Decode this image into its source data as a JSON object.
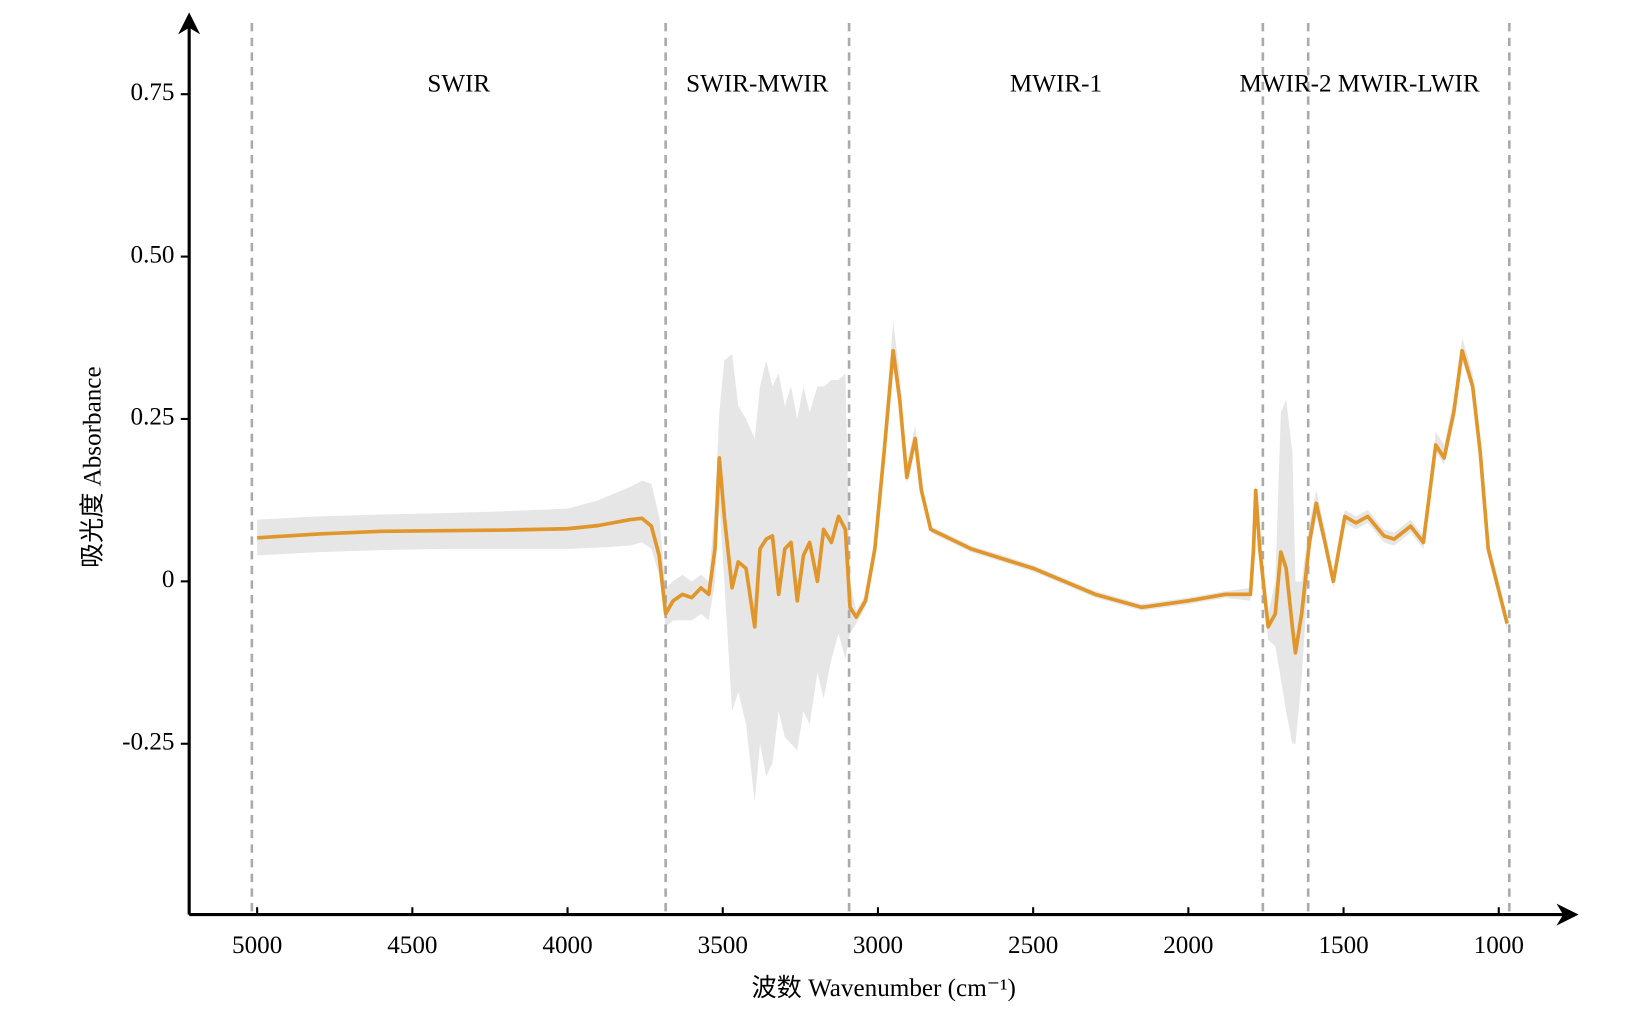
{
  "chart_data": {
    "type": "line",
    "x_label": "波数 Wavenumber (cm⁻¹)",
    "y_label": "吸光度 Absorbance",
    "color": "#e0962a",
    "band_color": "#e6e6e6",
    "xlim": [
      5219,
      764
    ],
    "ylim": [
      -0.513,
      0.866
    ],
    "xticks": [
      5000,
      4500,
      4000,
      3500,
      3000,
      2500,
      2000,
      1500,
      1000
    ],
    "yticks": [
      0.75,
      {
        "value": 0.5,
        "label": "0.50"
      },
      0.25,
      0,
      -0.25
    ],
    "regions": [
      "SWIR",
      "SWIR-MWIR",
      "MWIR-1",
      "MWIR-2",
      "MWIR-LWIR"
    ],
    "boundaries": [
      5017,
      3684,
      3093,
      1760,
      1614,
      966
    ],
    "x": [
      5000,
      4800,
      4600,
      4400,
      4200,
      4000,
      3900,
      3800,
      3760,
      3730,
      3705,
      3684,
      3660,
      3630,
      3600,
      3570,
      3545,
      3525,
      3511,
      3495,
      3470,
      3450,
      3425,
      3397,
      3380,
      3360,
      3340,
      3320,
      3300,
      3280,
      3260,
      3240,
      3220,
      3195,
      3175,
      3150,
      3127,
      3105,
      3090,
      3070,
      3040,
      3010,
      2980,
      2951,
      2930,
      2907,
      2880,
      2860,
      2830,
      2700,
      2500,
      2300,
      2150,
      2000,
      1880,
      1800,
      1790,
      1783,
      1770,
      1743,
      1720,
      1702,
      1685,
      1665,
      1655,
      1635,
      1610,
      1588,
      1560,
      1533,
      1496,
      1460,
      1422,
      1370,
      1337,
      1284,
      1243,
      1203,
      1176,
      1145,
      1118,
      1084,
      1060,
      1034,
      973
    ],
    "values": [
      0.067,
      0.073,
      0.077,
      0.078,
      0.079,
      0.081,
      0.086,
      0.095,
      0.097,
      0.085,
      0.04,
      -0.05,
      -0.03,
      -0.02,
      -0.025,
      -0.01,
      -0.02,
      0.05,
      0.19,
      0.1,
      -0.01,
      0.03,
      0.02,
      -0.07,
      0.05,
      0.065,
      0.07,
      -0.02,
      0.05,
      0.06,
      -0.03,
      0.04,
      0.06,
      0,
      0.08,
      0.06,
      0.1,
      0.08,
      -0.04,
      -0.055,
      -0.03,
      0.05,
      0.2,
      0.355,
      0.28,
      0.16,
      0.22,
      0.14,
      0.08,
      0.05,
      0.02,
      -0.02,
      -0.04,
      -0.03,
      -0.02,
      -0.02,
      0.05,
      0.14,
      0.05,
      -0.07,
      -0.05,
      0.045,
      0.02,
      -0.07,
      -0.11,
      -0.05,
      0.06,
      0.12,
      0.06,
      0,
      0.1,
      0.09,
      0.1,
      0.07,
      0.065,
      0.085,
      0.06,
      0.21,
      0.19,
      0.26,
      0.355,
      0.3,
      0.2,
      0.05,
      -0.065
    ],
    "band_lower": [
      0.04,
      0.045,
      0.048,
      0.05,
      0.05,
      0.05,
      0.052,
      0.055,
      0.06,
      0.05,
      0.01,
      -0.07,
      -0.06,
      -0.06,
      -0.06,
      -0.05,
      -0.06,
      0,
      0.12,
      0,
      -0.2,
      -0.17,
      -0.22,
      -0.34,
      -0.25,
      -0.3,
      -0.28,
      -0.2,
      -0.24,
      -0.25,
      -0.26,
      -0.2,
      -0.22,
      -0.14,
      -0.18,
      -0.12,
      -0.08,
      -0.12,
      -0.08,
      -0.065,
      -0.04,
      0.04,
      0.18,
      0.33,
      0.26,
      0.15,
      0.21,
      0.13,
      0.075,
      0.045,
      0.015,
      -0.025,
      -0.045,
      -0.035,
      -0.025,
      -0.03,
      0.04,
      0.13,
      0.04,
      -0.09,
      -0.1,
      -0.15,
      -0.2,
      -0.25,
      -0.25,
      -0.15,
      0.04,
      0.1,
      0.05,
      -0.01,
      0.09,
      0.08,
      0.09,
      0.06,
      0.055,
      0.075,
      0.05,
      0.2,
      0.18,
      0.25,
      0.34,
      0.29,
      0.19,
      0.04,
      -0.075
    ],
    "band_upper": [
      0.095,
      0.1,
      0.103,
      0.105,
      0.108,
      0.112,
      0.125,
      0.145,
      0.155,
      0.15,
      0.1,
      -0.01,
      0,
      0.01,
      0,
      0.01,
      0,
      0.12,
      0.26,
      0.34,
      0.35,
      0.27,
      0.25,
      0.22,
      0.3,
      0.34,
      0.3,
      0.32,
      0.27,
      0.3,
      0.25,
      0.3,
      0.26,
      0.3,
      0.3,
      0.31,
      0.31,
      0.32,
      0,
      -0.045,
      -0.02,
      0.07,
      0.23,
      0.4,
      0.32,
      0.18,
      0.24,
      0.15,
      0.085,
      0.055,
      0.025,
      -0.015,
      -0.035,
      -0.025,
      -0.015,
      -0.01,
      0.06,
      0.15,
      0.07,
      -0.05,
      0,
      0.26,
      0.28,
      0.2,
      0,
      0,
      0.09,
      0.14,
      0.08,
      0.01,
      0.11,
      0.1,
      0.11,
      0.08,
      0.075,
      0.095,
      0.07,
      0.23,
      0.21,
      0.28,
      0.375,
      0.32,
      0.21,
      0.06,
      -0.055
    ]
  }
}
